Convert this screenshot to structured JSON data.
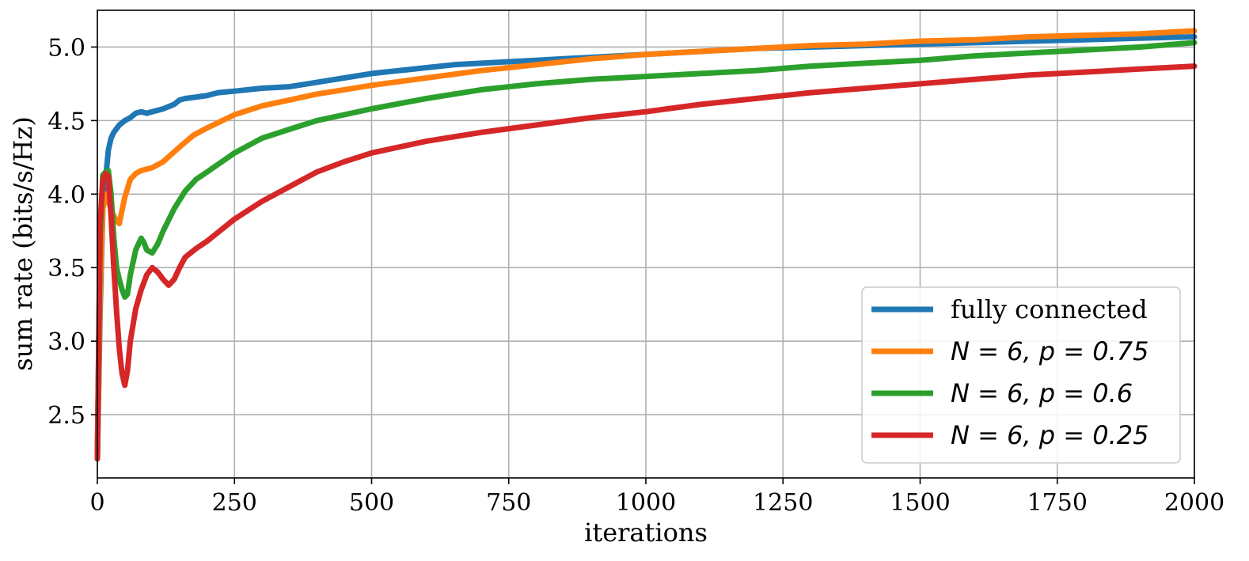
{
  "chart_data": {
    "type": "line",
    "xlabel": "iterations",
    "ylabel": "sum rate (bits/s/Hz)",
    "xlim": [
      0,
      2000
    ],
    "ylim": [
      2.07,
      5.25
    ],
    "xticks": [
      0,
      250,
      500,
      750,
      1000,
      1250,
      1500,
      1750,
      2000
    ],
    "yticks": [
      2.5,
      3.0,
      3.5,
      4.0,
      4.5,
      5.0
    ],
    "xtick_labels": [
      "0",
      "250",
      "500",
      "750",
      "1000",
      "1250",
      "1500",
      "1750",
      "2000"
    ],
    "ytick_labels": [
      "2.5",
      "3.0",
      "3.5",
      "4.0",
      "4.5",
      "5.0"
    ],
    "grid": true,
    "legend_position": "bottom-right",
    "series": [
      {
        "name": "fully connected",
        "color": "#1f77b4",
        "x": [
          0,
          5,
          10,
          15,
          20,
          25,
          30,
          40,
          50,
          60,
          70,
          80,
          90,
          100,
          120,
          140,
          150,
          160,
          180,
          200,
          220,
          250,
          300,
          350,
          400,
          450,
          500,
          550,
          600,
          650,
          700,
          750,
          800,
          850,
          900,
          950,
          1000,
          1100,
          1200,
          1300,
          1400,
          1500,
          1600,
          1700,
          1800,
          1900,
          2000
        ],
        "y": [
          2.2,
          3.2,
          3.9,
          4.1,
          4.3,
          4.38,
          4.42,
          4.47,
          4.5,
          4.52,
          4.55,
          4.56,
          4.55,
          4.56,
          4.58,
          4.61,
          4.64,
          4.65,
          4.66,
          4.67,
          4.69,
          4.7,
          4.72,
          4.73,
          4.76,
          4.79,
          4.82,
          4.84,
          4.86,
          4.88,
          4.89,
          4.9,
          4.91,
          4.92,
          4.93,
          4.94,
          4.95,
          4.97,
          4.99,
          5.0,
          5.01,
          5.02,
          5.03,
          5.04,
          5.05,
          5.06,
          5.07
        ]
      },
      {
        "name": "N = 6, p = 0.75",
        "color": "#ff7f0e",
        "x": [
          0,
          5,
          10,
          15,
          20,
          25,
          30,
          35,
          40,
          50,
          60,
          70,
          80,
          100,
          120,
          150,
          175,
          200,
          250,
          300,
          350,
          400,
          450,
          500,
          600,
          700,
          800,
          900,
          1000,
          1100,
          1200,
          1300,
          1400,
          1500,
          1600,
          1700,
          1800,
          1900,
          2000
        ],
        "y": [
          2.2,
          3.3,
          3.9,
          4.0,
          3.95,
          3.9,
          3.85,
          3.82,
          3.8,
          3.98,
          4.1,
          4.14,
          4.16,
          4.18,
          4.22,
          4.32,
          4.4,
          4.45,
          4.54,
          4.6,
          4.64,
          4.68,
          4.71,
          4.74,
          4.79,
          4.84,
          4.88,
          4.92,
          4.95,
          4.97,
          4.99,
          5.01,
          5.02,
          5.04,
          5.05,
          5.07,
          5.08,
          5.09,
          5.11
        ]
      },
      {
        "name": "N = 6, p = 0.6",
        "color": "#2ca02c",
        "x": [
          0,
          5,
          10,
          15,
          20,
          25,
          30,
          35,
          40,
          45,
          50,
          55,
          60,
          70,
          80,
          85,
          90,
          100,
          110,
          120,
          140,
          160,
          180,
          200,
          250,
          300,
          350,
          400,
          450,
          500,
          600,
          700,
          800,
          900,
          1000,
          1100,
          1200,
          1300,
          1400,
          1500,
          1600,
          1700,
          1800,
          1900,
          2000
        ],
        "y": [
          2.2,
          3.7,
          4.13,
          4.15,
          4.16,
          4.0,
          3.7,
          3.5,
          3.42,
          3.35,
          3.3,
          3.32,
          3.45,
          3.62,
          3.7,
          3.67,
          3.62,
          3.6,
          3.66,
          3.75,
          3.9,
          4.02,
          4.1,
          4.15,
          4.28,
          4.38,
          4.44,
          4.5,
          4.54,
          4.58,
          4.65,
          4.71,
          4.75,
          4.78,
          4.8,
          4.82,
          4.84,
          4.87,
          4.89,
          4.91,
          4.94,
          4.96,
          4.98,
          5.0,
          5.03
        ]
      },
      {
        "name": "N = 6, p = 0.25",
        "color": "#d62728",
        "x": [
          0,
          5,
          10,
          15,
          20,
          25,
          30,
          35,
          40,
          45,
          50,
          55,
          60,
          70,
          80,
          90,
          100,
          110,
          120,
          130,
          140,
          150,
          160,
          180,
          200,
          250,
          300,
          350,
          400,
          450,
          500,
          600,
          700,
          800,
          900,
          1000,
          1100,
          1200,
          1300,
          1400,
          1500,
          1600,
          1700,
          1800,
          1900,
          2000
        ],
        "y": [
          2.2,
          3.8,
          4.1,
          4.14,
          4.12,
          3.85,
          3.5,
          3.2,
          2.95,
          2.78,
          2.7,
          2.8,
          3.0,
          3.22,
          3.35,
          3.45,
          3.5,
          3.47,
          3.42,
          3.38,
          3.42,
          3.5,
          3.57,
          3.63,
          3.68,
          3.83,
          3.95,
          4.05,
          4.15,
          4.22,
          4.28,
          4.36,
          4.42,
          4.47,
          4.52,
          4.56,
          4.61,
          4.65,
          4.69,
          4.72,
          4.75,
          4.78,
          4.81,
          4.83,
          4.85,
          4.87
        ]
      }
    ],
    "legend_entries": [
      {
        "kind": "text",
        "text": "fully connected"
      },
      {
        "kind": "math",
        "text": "N = 6, p = 0.75"
      },
      {
        "kind": "math",
        "text": "N = 6, p = 0.6"
      },
      {
        "kind": "math",
        "text": "N = 6, p = 0.25"
      }
    ]
  }
}
